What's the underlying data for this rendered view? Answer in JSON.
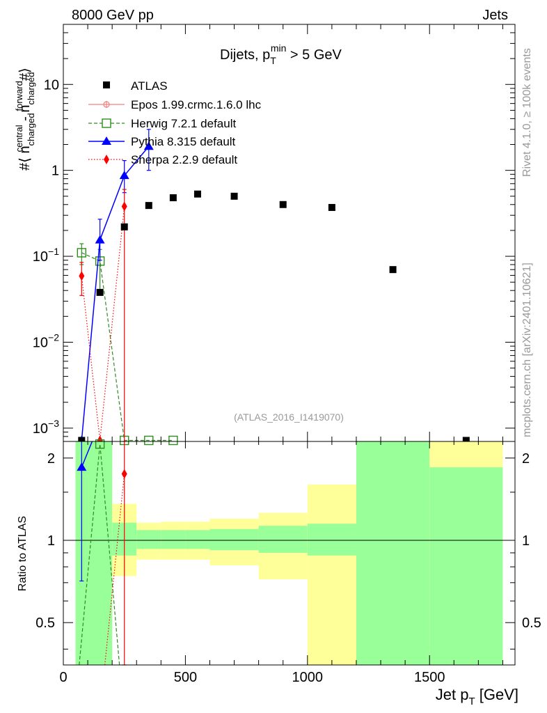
{
  "header": {
    "left_label": "8000 GeV pp",
    "right_label": "Jets"
  },
  "side_labels": {
    "rivet": "Rivet 4.1.0, ≥ 100k events",
    "mcplots": "mcplots.cern.ch [arXiv:2401.10621]"
  },
  "colors": {
    "data": "#000000",
    "epos": "#f08080",
    "herwig": "#2e8b1e",
    "pythia": "#0000ff",
    "sherpa": "#ff0000",
    "band_green": "#99ff99",
    "band_yellow": "#ffff99",
    "watermark": "#999999"
  },
  "chart_data": [
    {
      "type": "scatter",
      "panel": "main",
      "title_prefix": "Dijets, p",
      "title_sub": "T",
      "title_sup": "min",
      "title_suffix": " > 5 GeV",
      "ylabel": "#⟨ n(central, charged) − n(forward, charged) #⟩",
      "ylabel_tex": {
        "prefix": "#⟨ n",
        "sub1": "charged",
        "sup1": "central",
        "mid": " - n",
        "sub2": "charged",
        "sup2": "forward",
        "suffix": "#⟩"
      },
      "yscale": "log",
      "ylim": [
        0.0007,
        50
      ],
      "xlim": [
        0,
        1850
      ],
      "y_ticks": [
        {
          "value": 0.001,
          "label_base": "10",
          "label_exp": "−3"
        },
        {
          "value": 0.01,
          "label_base": "10",
          "label_exp": "−2"
        },
        {
          "value": 0.1,
          "label_base": "10",
          "label_exp": "−1"
        },
        {
          "value": 1,
          "label_base": "1",
          "label_exp": ""
        },
        {
          "value": 10,
          "label_base": "10",
          "label_exp": ""
        }
      ],
      "watermark": "(ATLAS_2016_I1419070)",
      "legend_position": "top-left",
      "series": [
        {
          "name": "ATLAS",
          "key": "data",
          "marker": "square",
          "x": [
            75,
            150,
            250,
            350,
            450,
            550,
            700,
            900,
            1100,
            1350,
            1650
          ],
          "y": [
            0.00072,
            0.038,
            0.22,
            0.39,
            0.48,
            0.53,
            0.5,
            0.4,
            0.37,
            0.07,
            0.00072
          ]
        },
        {
          "name": "Epos 1.99.crmc.1.6.0 lhc",
          "key": "epos",
          "marker": "cross-circle",
          "line": "solid",
          "x": [],
          "y": []
        },
        {
          "name": "Herwig 7.2.1 default",
          "key": "herwig",
          "marker": "open-square",
          "line": "dashed",
          "x": [
            75,
            150,
            250,
            350,
            450
          ],
          "y": [
            0.11,
            0.088,
            0.00072,
            0.00072,
            0.00072
          ],
          "yerr": [
            [
              0.08,
              0.14
            ],
            [
              0.04,
              0.12
            ]
          ]
        },
        {
          "name": "Pythia 8.315 default",
          "key": "pythia",
          "marker": "triangle",
          "line": "solid",
          "x": [
            75,
            150,
            250,
            350
          ],
          "y": [
            0.00072,
            0.155,
            0.87,
            1.9
          ],
          "yerr": [
            null,
            [
              0.09,
              0.27
            ],
            [
              0.55,
              1.3
            ],
            [
              1.0,
              3.0
            ]
          ]
        },
        {
          "name": "Sherpa 2.2.9 default",
          "key": "sherpa",
          "marker": "diamond",
          "line": "dotted",
          "x": [
            75,
            150,
            250
          ],
          "y": [
            0.059,
            0.00072,
            0.38
          ],
          "yerr": [
            [
              0.035,
              0.085
            ],
            null,
            [
              0.0007,
              0.6
            ]
          ]
        }
      ]
    },
    {
      "type": "scatter",
      "panel": "ratio",
      "ylabel": "Ratio to ATLAS",
      "xlabel_prefix": "Jet p",
      "xlabel_sub": "T",
      "xlabel_suffix": " [GeV]",
      "ylim": [
        0.35,
        2.3
      ],
      "xlim": [
        0,
        1850
      ],
      "x_ticks": [
        0,
        500,
        1000,
        1500
      ],
      "y_ticks": [
        0.5,
        1,
        2
      ],
      "bins": [
        {
          "lo": 50,
          "hi": 100,
          "green": [
            0.35,
            2.3
          ],
          "yellow": [
            0.35,
            2.3
          ]
        },
        {
          "lo": 100,
          "hi": 200,
          "green": [
            0.35,
            2.3
          ],
          "yellow": [
            0.35,
            2.3
          ]
        },
        {
          "lo": 200,
          "hi": 300,
          "green": [
            0.88,
            1.16
          ],
          "yellow": [
            0.74,
            1.36
          ]
        },
        {
          "lo": 300,
          "hi": 400,
          "green": [
            0.93,
            1.09
          ],
          "yellow": [
            0.85,
            1.16
          ]
        },
        {
          "lo": 400,
          "hi": 500,
          "green": [
            0.93,
            1.09
          ],
          "yellow": [
            0.85,
            1.17
          ]
        },
        {
          "lo": 500,
          "hi": 600,
          "green": [
            0.93,
            1.09
          ],
          "yellow": [
            0.85,
            1.17
          ]
        },
        {
          "lo": 600,
          "hi": 800,
          "green": [
            0.92,
            1.1
          ],
          "yellow": [
            0.81,
            1.2
          ]
        },
        {
          "lo": 800,
          "hi": 1000,
          "green": [
            0.9,
            1.13
          ],
          "yellow": [
            0.72,
            1.26
          ]
        },
        {
          "lo": 1000,
          "hi": 1200,
          "green": [
            0.88,
            1.15
          ],
          "yellow": [
            0.35,
            1.6
          ]
        },
        {
          "lo": 1200,
          "hi": 1500,
          "green": [
            0.35,
            2.3
          ],
          "yellow": [
            0.35,
            2.3
          ]
        },
        {
          "lo": 1500,
          "hi": 1800,
          "green": [
            0.35,
            1.85
          ],
          "yellow": [
            0.35,
            2.3
          ]
        }
      ],
      "series": [
        {
          "key": "herwig",
          "x": [
            150
          ],
          "y": [
            2.25
          ],
          "marker": "open-square",
          "line": "dashed",
          "line_path": [
            [
              65,
              0.35
            ],
            [
              150,
              2.25
            ],
            [
              230,
              0.35
            ]
          ]
        },
        {
          "key": "pythia",
          "x": [
            75
          ],
          "y": [
            1.85
          ],
          "marker": "triangle",
          "line": "solid",
          "yerr": [
            [
              0.71,
              2.3
            ]
          ],
          "line_path": [
            [
              75,
              1.85
            ],
            [
              118,
              2.3
            ]
          ]
        },
        {
          "key": "sherpa",
          "x": [
            250
          ],
          "y": [
            1.75
          ],
          "marker": "diamond",
          "line": "dotted",
          "yerr": [
            [
              0.35,
              2.3
            ]
          ],
          "line_path": [
            [
              170,
              0.35
            ],
            [
              250,
              1.75
            ]
          ]
        }
      ]
    }
  ]
}
